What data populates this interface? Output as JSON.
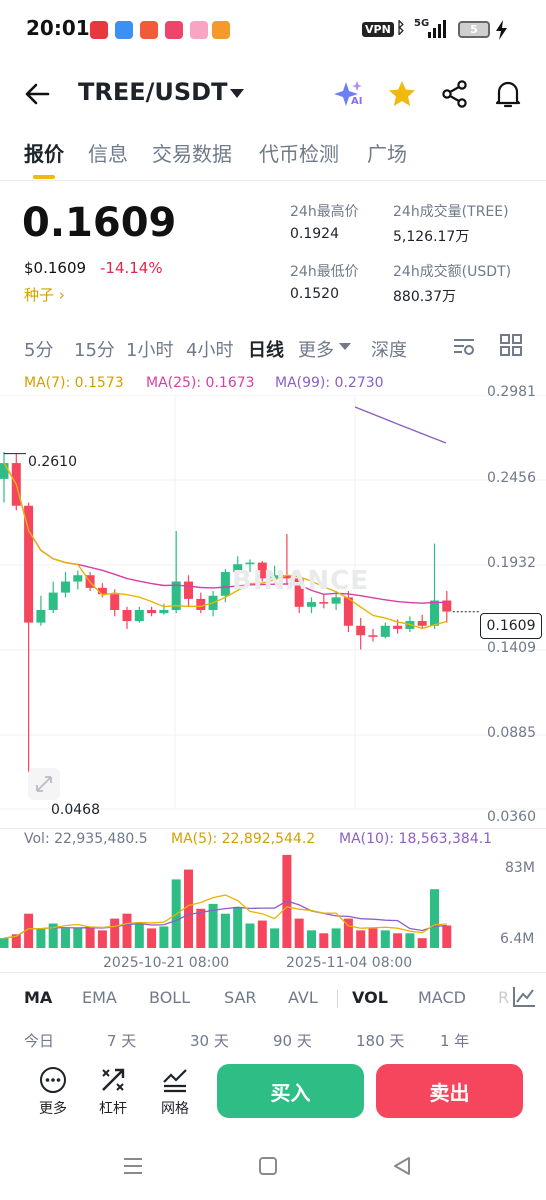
{
  "status": {
    "time": "20:01",
    "vpn": "VPN",
    "net": "5G",
    "battery": "5"
  },
  "header": {
    "pair": "TREE/USDT",
    "ai_badge": "AI"
  },
  "tabs": [
    "报价",
    "信息",
    "交易数据",
    "代币检测",
    "广场"
  ],
  "price": {
    "last": "0.1609",
    "usd": "$0.1609",
    "change": "-14.14%",
    "tag": "种子 ›",
    "high_label": "24h最高价",
    "high": "0.1924",
    "low_label": "24h最低价",
    "low": "0.1520",
    "vol_label": "24h成交量(TREE)",
    "vol": "5,126.17万",
    "amount_label": "24h成交额(USDT)",
    "amount": "880.37万"
  },
  "intervals": [
    "5分",
    "15分",
    "1小时",
    "4小时",
    "日线",
    "更多",
    "深度"
  ],
  "ma": {
    "ma7": "MA(7): 0.1573",
    "ma25": "MA(25): 0.1673",
    "ma99": "MA(99): 0.2730"
  },
  "axis": {
    "y": [
      "0.2981",
      "0.2456",
      "0.1932",
      "0.1409",
      "0.0885",
      "0.0360"
    ],
    "current": "0.1609",
    "hi_marker": "0.2610",
    "lo_marker": "0.0468",
    "vol_top": "83M",
    "vol_bottom": "6.4M",
    "dates": [
      "2025-10-21 08:00",
      "2025-11-04 08:00"
    ]
  },
  "vol": {
    "vol": "Vol: 22,935,480.5",
    "ma5": "MA(5): 22,892,544.2",
    "ma10": "MA(10): 18,563,384.1"
  },
  "watermark": "BINANCE",
  "indicators": [
    "MA",
    "EMA",
    "BOLL",
    "SAR",
    "AVL",
    "VOL",
    "MACD",
    "R"
  ],
  "ranges": [
    "今日",
    "7 天",
    "30 天",
    "90 天",
    "180 天",
    "1 年"
  ],
  "bottom": {
    "more": "更多",
    "leverage": "杠杆",
    "grid": "网格",
    "buy": "买入",
    "sell": "卖出"
  },
  "chart_data": {
    "type": "candlestick",
    "x_labels": [
      "2025-10-21 08:00",
      "2025-11-04 08:00"
    ],
    "ylim": [
      0.036,
      0.2981
    ],
    "candles": [
      {
        "o": 0.245,
        "h": 0.262,
        "l": 0.23,
        "c": 0.255
      },
      {
        "o": 0.255,
        "h": 0.261,
        "l": 0.225,
        "c": 0.228
      },
      {
        "o": 0.228,
        "h": 0.23,
        "l": 0.047,
        "c": 0.154
      },
      {
        "o": 0.154,
        "h": 0.171,
        "l": 0.152,
        "c": 0.162
      },
      {
        "o": 0.162,
        "h": 0.18,
        "l": 0.16,
        "c": 0.173
      },
      {
        "o": 0.173,
        "h": 0.186,
        "l": 0.17,
        "c": 0.18
      },
      {
        "o": 0.18,
        "h": 0.187,
        "l": 0.175,
        "c": 0.184
      },
      {
        "o": 0.184,
        "h": 0.186,
        "l": 0.174,
        "c": 0.176
      },
      {
        "o": 0.176,
        "h": 0.179,
        "l": 0.17,
        "c": 0.172
      },
      {
        "o": 0.172,
        "h": 0.175,
        "l": 0.158,
        "c": 0.162
      },
      {
        "o": 0.162,
        "h": 0.164,
        "l": 0.15,
        "c": 0.155
      },
      {
        "o": 0.155,
        "h": 0.164,
        "l": 0.154,
        "c": 0.162
      },
      {
        "o": 0.162,
        "h": 0.164,
        "l": 0.158,
        "c": 0.16
      },
      {
        "o": 0.16,
        "h": 0.166,
        "l": 0.159,
        "c": 0.162
      },
      {
        "o": 0.162,
        "h": 0.212,
        "l": 0.16,
        "c": 0.18
      },
      {
        "o": 0.18,
        "h": 0.184,
        "l": 0.164,
        "c": 0.169
      },
      {
        "o": 0.169,
        "h": 0.173,
        "l": 0.16,
        "c": 0.162
      },
      {
        "o": 0.162,
        "h": 0.174,
        "l": 0.158,
        "c": 0.171
      },
      {
        "o": 0.171,
        "h": 0.188,
        "l": 0.167,
        "c": 0.186
      },
      {
        "o": 0.186,
        "h": 0.196,
        "l": 0.183,
        "c": 0.191
      },
      {
        "o": 0.191,
        "h": 0.194,
        "l": 0.186,
        "c": 0.192
      },
      {
        "o": 0.192,
        "h": 0.193,
        "l": 0.18,
        "c": 0.182
      },
      {
        "o": 0.182,
        "h": 0.19,
        "l": 0.178,
        "c": 0.184
      },
      {
        "o": 0.184,
        "h": 0.21,
        "l": 0.178,
        "c": 0.182
      },
      {
        "o": 0.182,
        "h": 0.185,
        "l": 0.16,
        "c": 0.164
      },
      {
        "o": 0.164,
        "h": 0.17,
        "l": 0.16,
        "c": 0.167
      },
      {
        "o": 0.167,
        "h": 0.172,
        "l": 0.163,
        "c": 0.166
      },
      {
        "o": 0.166,
        "h": 0.174,
        "l": 0.162,
        "c": 0.17
      },
      {
        "o": 0.17,
        "h": 0.174,
        "l": 0.148,
        "c": 0.152
      },
      {
        "o": 0.152,
        "h": 0.157,
        "l": 0.137,
        "c": 0.146
      },
      {
        "o": 0.146,
        "h": 0.15,
        "l": 0.142,
        "c": 0.145
      },
      {
        "o": 0.145,
        "h": 0.154,
        "l": 0.144,
        "c": 0.152
      },
      {
        "o": 0.152,
        "h": 0.156,
        "l": 0.147,
        "c": 0.15
      },
      {
        "o": 0.15,
        "h": 0.158,
        "l": 0.148,
        "c": 0.155
      },
      {
        "o": 0.155,
        "h": 0.159,
        "l": 0.15,
        "c": 0.152
      },
      {
        "o": 0.152,
        "h": 0.204,
        "l": 0.15,
        "c": 0.168
      },
      {
        "o": 0.168,
        "h": 0.174,
        "l": 0.154,
        "c": 0.161
      }
    ],
    "volume": [
      0.1,
      0.14,
      0.35,
      0.2,
      0.25,
      0.2,
      0.2,
      0.22,
      0.18,
      0.3,
      0.35,
      0.25,
      0.2,
      0.22,
      0.7,
      0.8,
      0.4,
      0.45,
      0.35,
      0.42,
      0.25,
      0.28,
      0.2,
      0.95,
      0.3,
      0.18,
      0.15,
      0.2,
      0.3,
      0.18,
      0.2,
      0.18,
      0.15,
      0.15,
      0.1,
      0.6,
      0.23
    ]
  }
}
